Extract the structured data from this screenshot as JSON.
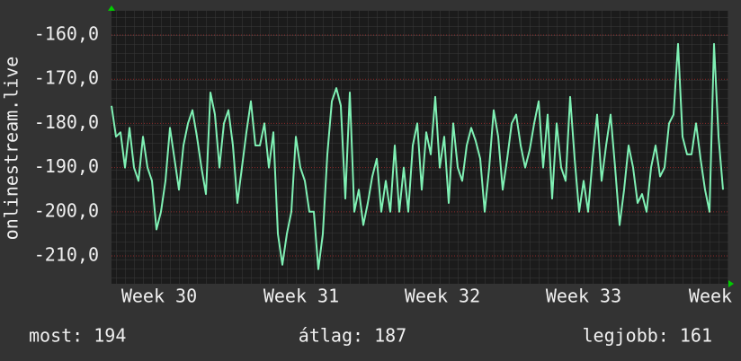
{
  "chart_data": {
    "type": "line",
    "y_label": "onlinestream.live",
    "color": "#7ff0b4",
    "values": [
      -176,
      -183,
      -182,
      -190,
      -181,
      -190,
      -193,
      -183,
      -190,
      -193,
      -204,
      -200,
      -193,
      -181,
      -188,
      -195,
      -185,
      -180,
      -177,
      -183,
      -190,
      -196,
      -173,
      -178,
      -190,
      -180,
      -177,
      -185,
      -198,
      -190,
      -182,
      -175,
      -185,
      -185,
      -180,
      -190,
      -182,
      -205,
      -212,
      -205,
      -200,
      -183,
      -190,
      -193,
      -200,
      -200,
      -213,
      -205,
      -187,
      -175,
      -172,
      -176,
      -197,
      -173,
      -200,
      -195,
      -203,
      -198,
      -192,
      -188,
      -200,
      -193,
      -200,
      -185,
      -200,
      -190,
      -200,
      -185,
      -180,
      -195,
      -182,
      -187,
      -174,
      -190,
      -183,
      -198,
      -180,
      -190,
      -193,
      -185,
      -181,
      -184,
      -188,
      -200,
      -190,
      -177,
      -183,
      -195,
      -188,
      -180,
      -178,
      -185,
      -190,
      -186,
      -180,
      -175,
      -190,
      -178,
      -197,
      -180,
      -190,
      -193,
      -174,
      -188,
      -200,
      -193,
      -200,
      -188,
      -178,
      -193,
      -185,
      -178,
      -190,
      -203,
      -195,
      -185,
      -190,
      -198,
      -196,
      -200,
      -190,
      -185,
      -192,
      -190,
      -180,
      -178,
      -162,
      -183,
      -187,
      -187,
      -180,
      -188,
      -195,
      -200,
      -162,
      -183,
      -195
    ],
    "xlim": [
      0,
      136
    ],
    "xticks": [
      {
        "value": 10.6,
        "label": "Week 30"
      },
      {
        "value": 42.2,
        "label": "Week 31"
      },
      {
        "value": 73.6,
        "label": "Week 32"
      },
      {
        "value": 105,
        "label": "Week 33"
      },
      {
        "value": 133.2,
        "label": "Week"
      }
    ],
    "ylim": [
      -216.3,
      -154.5
    ],
    "yticks": [
      {
        "value": -160,
        "label": "-160,0"
      },
      {
        "value": -170,
        "label": "-170,0"
      },
      {
        "value": -180,
        "label": "-180,0"
      },
      {
        "value": -190,
        "label": "-190,0"
      },
      {
        "value": -200,
        "label": "-200,0"
      },
      {
        "value": -210,
        "label": "-210,0"
      }
    ],
    "grid": true,
    "stats": [
      "most: 194",
      "átlag: 187",
      "legjobb: 161"
    ]
  }
}
